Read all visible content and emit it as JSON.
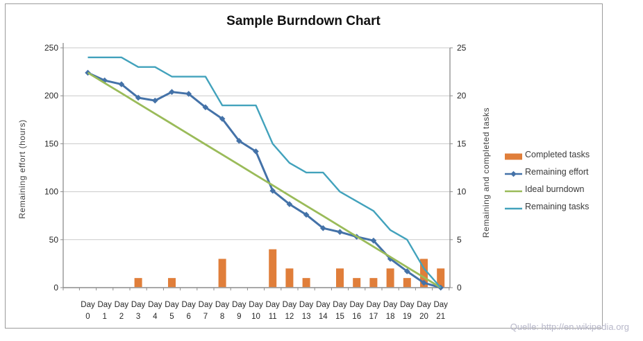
{
  "chart_data": {
    "type": "combo",
    "title": "Sample Burndown Chart",
    "categories": [
      "Day 0",
      "Day 1",
      "Day 2",
      "Day 3",
      "Day 4",
      "Day 5",
      "Day 6",
      "Day 7",
      "Day 8",
      "Day 9",
      "Day 10",
      "Day 11",
      "Day 12",
      "Day 13",
      "Day 14",
      "Day 15",
      "Day 16",
      "Day 17",
      "Day 18",
      "Day 19",
      "Day 20",
      "Day 21"
    ],
    "series": [
      {
        "name": "Completed tasks",
        "type": "bar",
        "axis": "right",
        "color": "#E07E3A",
        "values": [
          0,
          0,
          0,
          1,
          0,
          1,
          0,
          0,
          3,
          0,
          0,
          4,
          2,
          1,
          0,
          2,
          1,
          1,
          2,
          1,
          3,
          2
        ]
      },
      {
        "name": "Remaining effort",
        "type": "line",
        "marker": "diamond",
        "axis": "left",
        "color": "#4472A8",
        "values": [
          224,
          216,
          212,
          198,
          195,
          204,
          202,
          188,
          176,
          153,
          142,
          101,
          87,
          76,
          62,
          58,
          53,
          49,
          30,
          17,
          5,
          0
        ]
      },
      {
        "name": "Ideal burndown",
        "type": "line",
        "axis": "left",
        "color": "#9ABB59",
        "values": [
          224,
          213.3,
          202.7,
          192,
          181.3,
          170.7,
          160,
          149.3,
          138.7,
          128,
          117.3,
          106.7,
          96,
          85.3,
          74.7,
          64,
          53.3,
          42.7,
          32,
          21.3,
          10.7,
          0
        ]
      },
      {
        "name": "Remaining tasks",
        "type": "line",
        "axis": "right",
        "color": "#42A2BC",
        "values": [
          24,
          24,
          24,
          23,
          23,
          22,
          22,
          22,
          19,
          19,
          19,
          15,
          13,
          12,
          12,
          10,
          9,
          8,
          6,
          5,
          2,
          0
        ]
      }
    ],
    "left_axis": {
      "title": "Remaining effort (hours)",
      "min": 0,
      "max": 250,
      "step": 50
    },
    "right_axis": {
      "title": "Remaining and completed tasks",
      "min": 0,
      "max": 25,
      "step": 5
    },
    "legend_position": "right",
    "grid": true,
    "palette": {
      "gridline": "#C9C9C9",
      "axis_line": "#8C8C8C",
      "tick_label": "#262626",
      "title_color": "#111111"
    }
  },
  "source_note": "Quelle: http://en.wikipedia.org"
}
